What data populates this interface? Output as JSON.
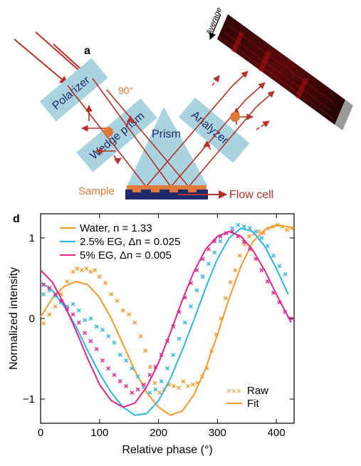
{
  "panel_a": {
    "label": "a",
    "polarizer": "Polarizer",
    "wedge_prism": "Wedge prism",
    "prism": "Prism",
    "analyzer": "Analyzer",
    "angle": "90°",
    "sample": "Sample",
    "flow_cell": "Flow cell",
    "average": "Average"
  },
  "colors": {
    "beam": "#b5322a",
    "sample_orange": "#e07a3a",
    "box_blue": "#a9d3df",
    "prism_blue": "#a9d3df",
    "label_navy": "#1f2a6b",
    "flowcell_navy": "#1f2a6b",
    "water": "#f39a2b",
    "eg25": "#2cb5e8",
    "eg5": "#e0258c"
  },
  "chart_data": {
    "type": "scatter",
    "panel_label": "d",
    "xlabel": "Relative phase (°)",
    "ylabel": "Normalized intensity",
    "xlim": [
      0,
      430
    ],
    "ylim": [
      -1.3,
      1.3
    ],
    "xticks": [
      0,
      100,
      200,
      300,
      400
    ],
    "yticks": [
      -1,
      0,
      1
    ],
    "xtick_labels": [
      "0",
      "100",
      "200",
      "300",
      "400"
    ],
    "ytick_labels": [
      "−1",
      "0",
      "1"
    ],
    "legend_top": [
      "Water, n = 1.33",
      "2.5% EG, Δn = 0.025",
      "5% EG, Δn = 0.005"
    ],
    "legend_bottom": [
      "Raw",
      "Fit"
    ],
    "series": [
      {
        "name": "Water, n = 1.33",
        "color": "#f39a2b",
        "raw": [
          [
            5,
            -0.06
          ],
          [
            15,
            0.05
          ],
          [
            25,
            0.15
          ],
          [
            35,
            0.3
          ],
          [
            45,
            0.46
          ],
          [
            55,
            0.58
          ],
          [
            62,
            0.62
          ],
          [
            70,
            0.6
          ],
          [
            78,
            0.62
          ],
          [
            85,
            0.58
          ],
          [
            92,
            0.6
          ],
          [
            100,
            0.52
          ],
          [
            110,
            0.44
          ],
          [
            120,
            0.3
          ],
          [
            130,
            0.22
          ],
          [
            140,
            0.1
          ],
          [
            150,
            0.05
          ],
          [
            160,
            -0.05
          ],
          [
            170,
            -0.22
          ],
          [
            178,
            -0.4
          ],
          [
            186,
            -0.6
          ],
          [
            194,
            -0.8
          ],
          [
            202,
            -0.92
          ],
          [
            210,
            -0.88
          ],
          [
            218,
            -0.82
          ],
          [
            226,
            -0.84
          ],
          [
            234,
            -0.86
          ],
          [
            242,
            -0.78
          ],
          [
            250,
            -0.84
          ],
          [
            258,
            -0.82
          ],
          [
            266,
            -0.8
          ],
          [
            274,
            -0.72
          ],
          [
            282,
            -0.62
          ],
          [
            290,
            -0.4
          ],
          [
            298,
            -0.2
          ],
          [
            306,
            0.0
          ],
          [
            314,
            0.25
          ],
          [
            322,
            0.45
          ],
          [
            330,
            0.6
          ],
          [
            338,
            0.78
          ],
          [
            346,
            0.92
          ],
          [
            354,
            1.02
          ],
          [
            362,
            1.05
          ],
          [
            370,
            1.08
          ],
          [
            378,
            1.06
          ],
          [
            386,
            1.12
          ],
          [
            394,
            1.14
          ],
          [
            402,
            1.16
          ],
          [
            410,
            1.14
          ],
          [
            418,
            1.1
          ],
          [
            426,
            1.12
          ]
        ],
        "fit": [
          [
            0,
            0.02
          ],
          [
            20,
            0.25
          ],
          [
            40,
            0.4
          ],
          [
            60,
            0.46
          ],
          [
            80,
            0.42
          ],
          [
            100,
            0.26
          ],
          [
            120,
            0.0
          ],
          [
            140,
            -0.32
          ],
          [
            160,
            -0.65
          ],
          [
            180,
            -0.92
          ],
          [
            200,
            -1.1
          ],
          [
            220,
            -1.2
          ],
          [
            240,
            -1.15
          ],
          [
            260,
            -0.95
          ],
          [
            280,
            -0.62
          ],
          [
            300,
            -0.2
          ],
          [
            320,
            0.25
          ],
          [
            340,
            0.65
          ],
          [
            360,
            0.95
          ],
          [
            380,
            1.1
          ],
          [
            400,
            1.16
          ],
          [
            420,
            1.14
          ],
          [
            430,
            1.12
          ]
        ]
      },
      {
        "name": "2.5% EG, Δn = 0.025",
        "color": "#2cb5e8",
        "raw": [
          [
            5,
            0.3
          ],
          [
            15,
            0.35
          ],
          [
            25,
            0.28
          ],
          [
            35,
            0.2
          ],
          [
            45,
            0.15
          ],
          [
            55,
            0.18
          ],
          [
            65,
            0.1
          ],
          [
            75,
            -0.02
          ],
          [
            85,
            0.0
          ],
          [
            95,
            -0.1
          ],
          [
            105,
            -0.14
          ],
          [
            115,
            -0.22
          ],
          [
            125,
            -0.3
          ],
          [
            135,
            -0.45
          ],
          [
            145,
            -0.52
          ],
          [
            155,
            -0.62
          ],
          [
            165,
            -0.72
          ],
          [
            175,
            -0.85
          ],
          [
            185,
            -0.92
          ],
          [
            195,
            -0.88
          ],
          [
            205,
            -0.78
          ],
          [
            215,
            -0.62
          ],
          [
            225,
            -0.45
          ],
          [
            235,
            -0.25
          ],
          [
            245,
            -0.05
          ],
          [
            255,
            0.15
          ],
          [
            265,
            0.35
          ],
          [
            275,
            0.52
          ],
          [
            285,
            0.68
          ],
          [
            295,
            0.82
          ],
          [
            305,
            0.96
          ],
          [
            315,
            1.06
          ],
          [
            325,
            1.12
          ],
          [
            335,
            1.16
          ],
          [
            345,
            1.14
          ],
          [
            355,
            1.12
          ],
          [
            365,
            1.08
          ],
          [
            375,
            1.0
          ],
          [
            385,
            0.9
          ],
          [
            395,
            0.78
          ],
          [
            405,
            0.65
          ],
          [
            415,
            0.55
          ]
        ],
        "fit": [
          [
            0,
            0.45
          ],
          [
            20,
            0.35
          ],
          [
            40,
            0.15
          ],
          [
            60,
            -0.1
          ],
          [
            80,
            -0.4
          ],
          [
            100,
            -0.68
          ],
          [
            120,
            -0.92
          ],
          [
            140,
            -1.1
          ],
          [
            160,
            -1.2
          ],
          [
            180,
            -1.18
          ],
          [
            200,
            -1.02
          ],
          [
            220,
            -0.75
          ],
          [
            240,
            -0.4
          ],
          [
            260,
            -0.02
          ],
          [
            280,
            0.38
          ],
          [
            300,
            0.74
          ],
          [
            320,
            1.0
          ],
          [
            340,
            1.12
          ],
          [
            360,
            1.08
          ],
          [
            380,
            0.9
          ],
          [
            400,
            0.62
          ],
          [
            420,
            0.3
          ]
        ]
      },
      {
        "name": "5% EG, Δn = 0.005",
        "color": "#e0258c",
        "raw": [
          [
            5,
            0.42
          ],
          [
            15,
            0.38
          ],
          [
            25,
            0.3
          ],
          [
            35,
            0.22
          ],
          [
            45,
            0.12
          ],
          [
            55,
            0.05
          ],
          [
            65,
            -0.05
          ],
          [
            75,
            -0.18
          ],
          [
            85,
            -0.28
          ],
          [
            95,
            -0.38
          ],
          [
            105,
            -0.52
          ],
          [
            115,
            -0.62
          ],
          [
            125,
            -0.7
          ],
          [
            135,
            -0.78
          ],
          [
            145,
            -0.84
          ],
          [
            155,
            -0.92
          ],
          [
            165,
            -0.88
          ],
          [
            175,
            -0.82
          ],
          [
            185,
            -0.7
          ],
          [
            195,
            -0.6
          ],
          [
            205,
            -0.45
          ],
          [
            215,
            -0.28
          ],
          [
            225,
            -0.1
          ],
          [
            235,
            0.08
          ],
          [
            245,
            0.26
          ],
          [
            255,
            0.44
          ],
          [
            265,
            0.6
          ],
          [
            275,
            0.74
          ],
          [
            285,
            0.86
          ],
          [
            295,
            0.96
          ],
          [
            305,
            1.02
          ],
          [
            315,
            1.06
          ],
          [
            325,
            1.08
          ],
          [
            335,
            1.02
          ],
          [
            345,
            0.95
          ],
          [
            355,
            0.86
          ],
          [
            365,
            0.74
          ],
          [
            375,
            0.6
          ],
          [
            385,
            0.46
          ],
          [
            395,
            0.32
          ],
          [
            405,
            0.2
          ],
          [
            415,
            0.08
          ],
          [
            425,
            0.0
          ]
        ],
        "fit": [
          [
            0,
            0.6
          ],
          [
            20,
            0.45
          ],
          [
            40,
            0.18
          ],
          [
            60,
            -0.15
          ],
          [
            80,
            -0.5
          ],
          [
            100,
            -0.82
          ],
          [
            120,
            -1.02
          ],
          [
            140,
            -1.1
          ],
          [
            160,
            -1.05
          ],
          [
            180,
            -0.85
          ],
          [
            200,
            -0.55
          ],
          [
            220,
            -0.18
          ],
          [
            240,
            0.22
          ],
          [
            260,
            0.58
          ],
          [
            280,
            0.86
          ],
          [
            300,
            1.02
          ],
          [
            320,
            1.08
          ],
          [
            340,
            1.02
          ],
          [
            360,
            0.85
          ],
          [
            380,
            0.6
          ],
          [
            400,
            0.3
          ],
          [
            420,
            0.02
          ],
          [
            425,
            -0.05
          ]
        ]
      }
    ]
  }
}
